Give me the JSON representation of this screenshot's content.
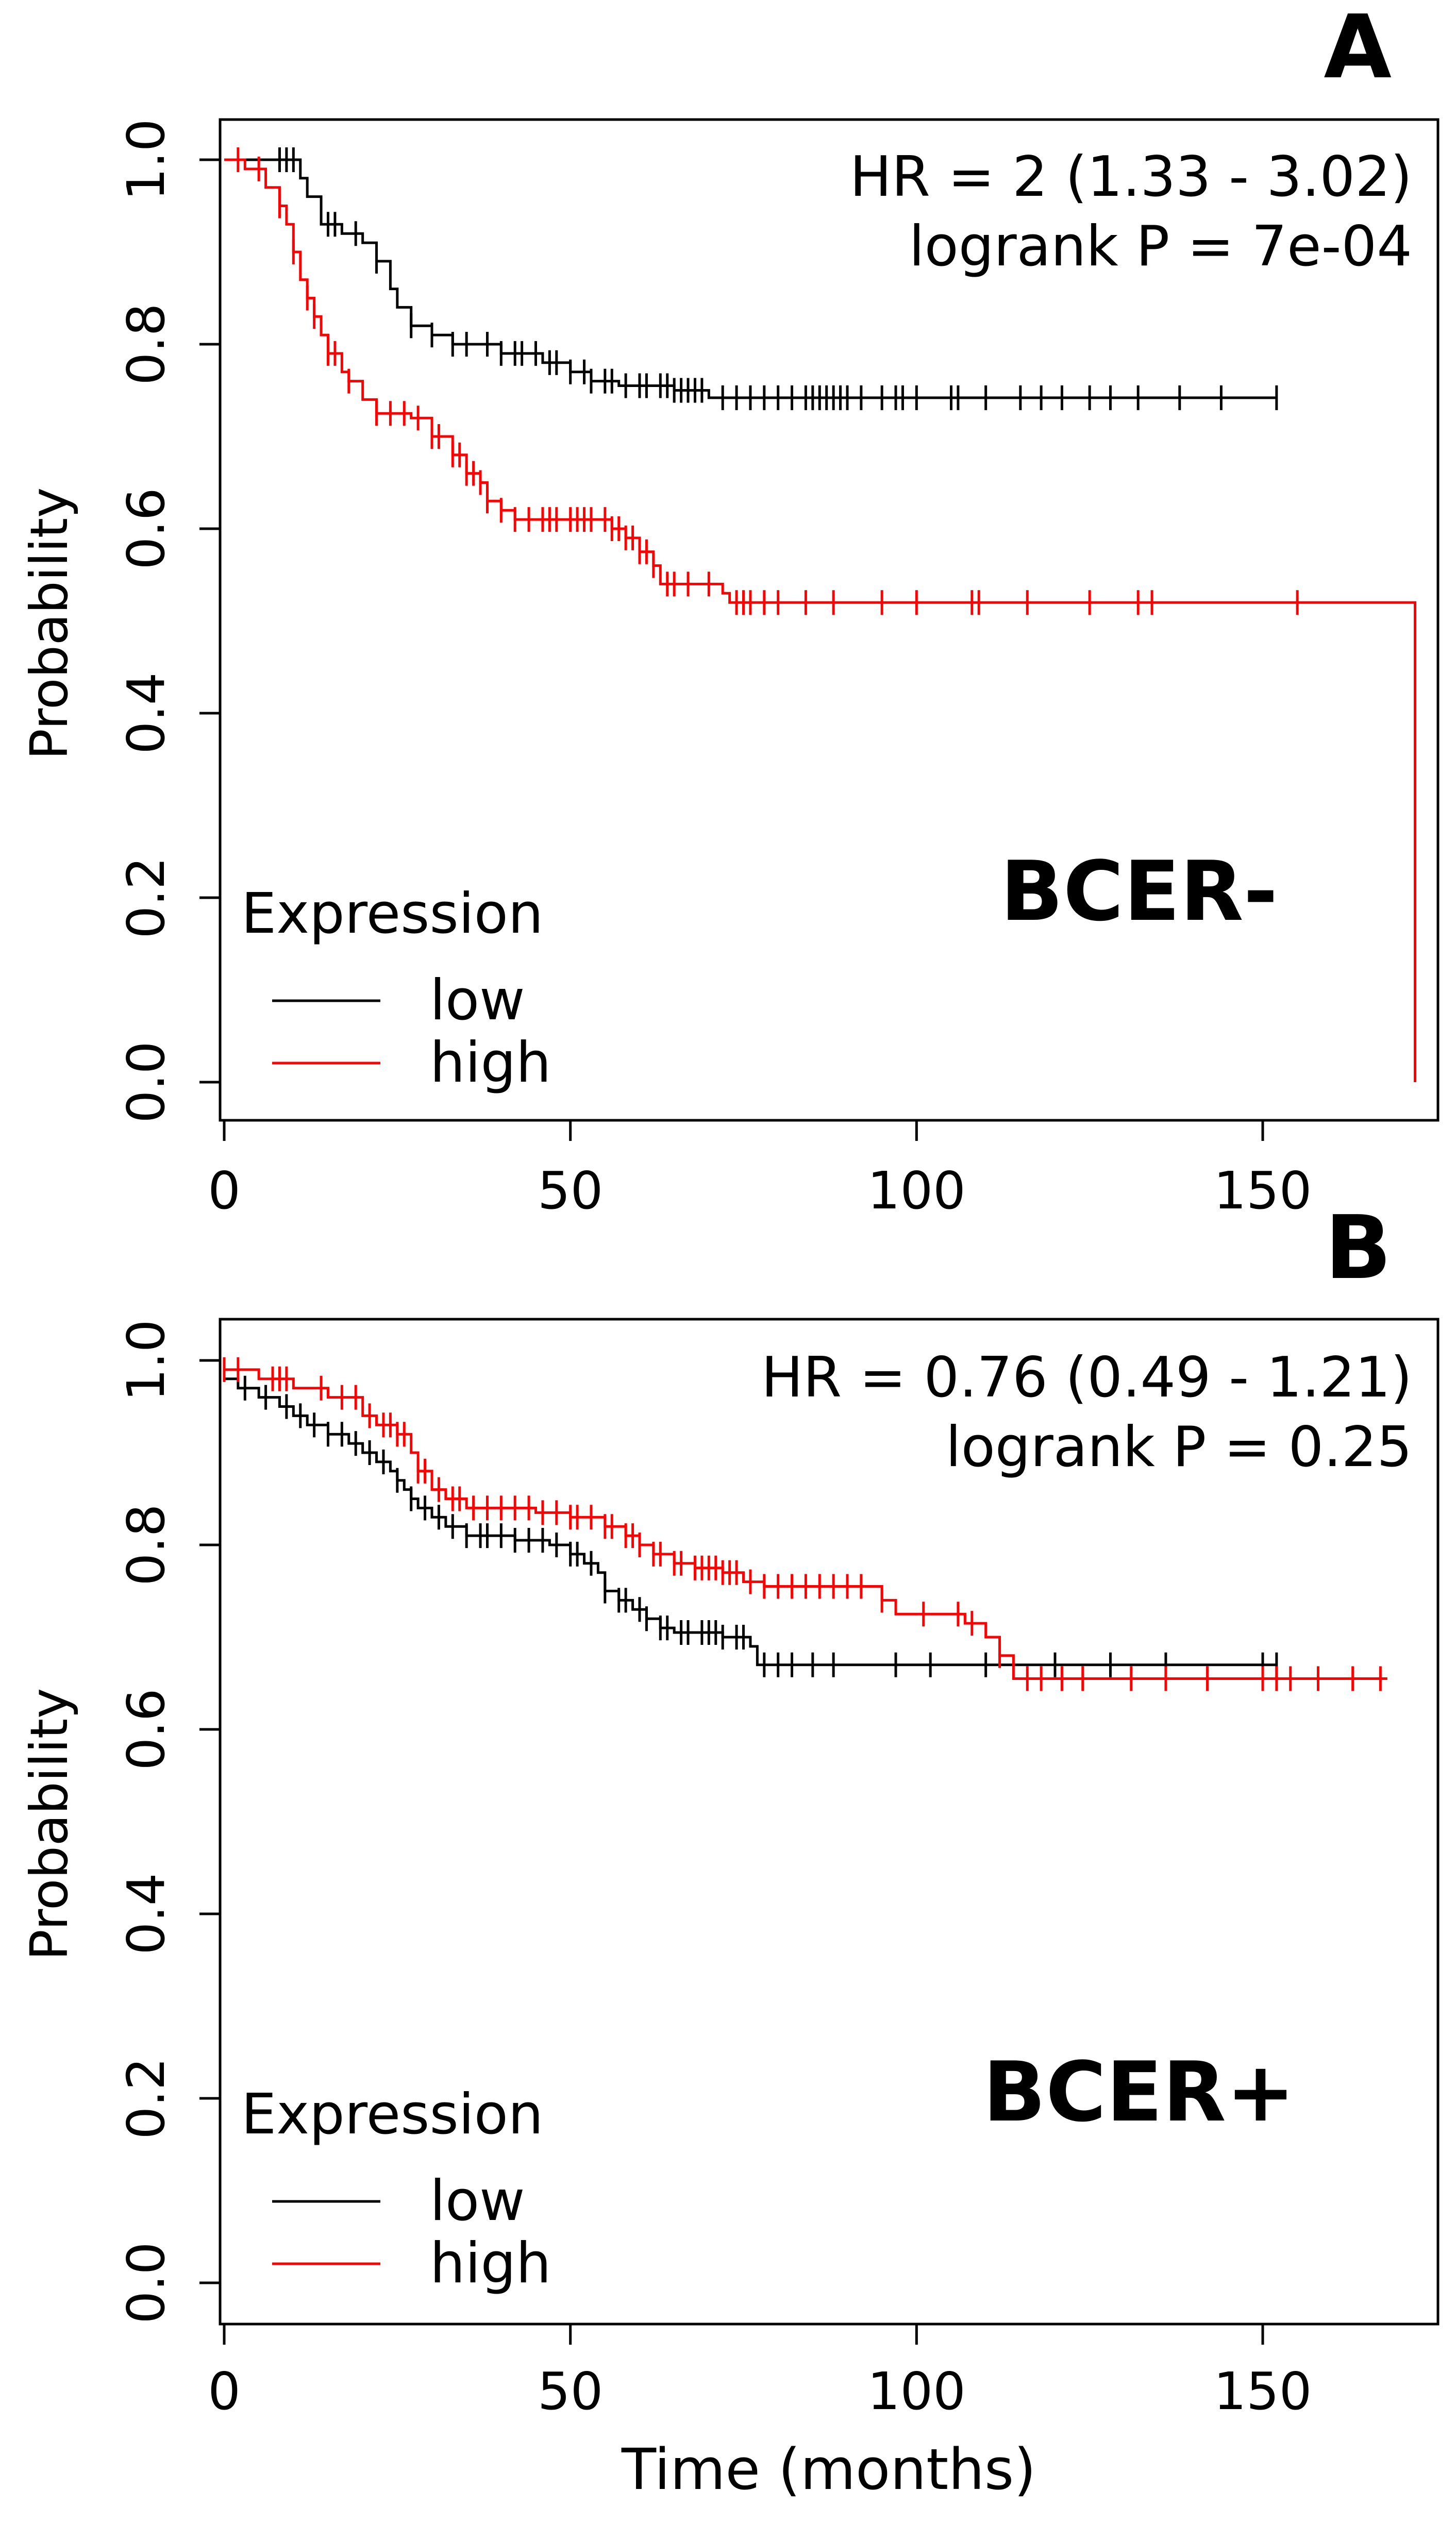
{
  "chart_data": [
    {
      "panel_label": "A",
      "type": "line",
      "subtype": "kaplan-meier",
      "title": "",
      "xlabel": "",
      "ylabel": "Probability",
      "xlim": [
        0,
        175
      ],
      "ylim": [
        0,
        1
      ],
      "x_ticks": [
        0,
        50,
        100,
        150
      ],
      "y_ticks": [
        0.0,
        0.2,
        0.4,
        0.6,
        0.8,
        1.0
      ],
      "x_tick_labels": [
        "0",
        "50",
        "100",
        "150"
      ],
      "y_tick_labels": [
        "0.0",
        "0.2",
        "0.4",
        "0.6",
        "0.8",
        "1.0"
      ],
      "grid": false,
      "annotations": [
        "HR = 2 (1.33 - 3.02)",
        "logrank P = 7e-04"
      ],
      "group_label": "BCER-",
      "legend": {
        "title": "Expression",
        "position": "bottom-left",
        "entries": [
          "low",
          "high"
        ]
      },
      "series": [
        {
          "name": "low",
          "color": "#000000",
          "steps": [
            [
              0,
              1.0
            ],
            [
              11,
              0.98
            ],
            [
              12,
              0.96
            ],
            [
              14,
              0.93
            ],
            [
              17,
              0.92
            ],
            [
              20,
              0.91
            ],
            [
              22,
              0.89
            ],
            [
              24,
              0.86
            ],
            [
              25,
              0.84
            ],
            [
              27,
              0.82
            ],
            [
              30,
              0.81
            ],
            [
              33,
              0.8
            ],
            [
              40,
              0.79
            ],
            [
              46,
              0.78
            ],
            [
              50,
              0.77
            ],
            [
              53,
              0.76
            ],
            [
              57,
              0.755
            ],
            [
              65,
              0.75
            ],
            [
              70,
              0.742
            ],
            [
              152,
              0.742
            ]
          ],
          "censors": [
            8,
            9,
            10,
            15,
            16,
            19,
            22,
            27,
            30,
            33,
            35,
            38,
            40,
            42,
            43,
            45,
            47,
            48,
            50,
            52,
            53,
            55,
            56,
            58,
            60,
            61,
            63,
            64,
            65,
            66,
            67,
            68,
            69,
            72,
            74,
            76,
            78,
            80,
            82,
            84,
            85,
            86,
            87,
            88,
            89,
            90,
            92,
            95,
            97,
            98,
            100,
            105,
            106,
            110,
            115,
            118,
            121,
            125,
            128,
            132,
            138,
            144,
            152
          ]
        },
        {
          "name": "high",
          "color": "#ff0000",
          "steps": [
            [
              0,
              1.0
            ],
            [
              3,
              0.99
            ],
            [
              6,
              0.97
            ],
            [
              8,
              0.95
            ],
            [
              9,
              0.93
            ],
            [
              10,
              0.9
            ],
            [
              11,
              0.87
            ],
            [
              12,
              0.85
            ],
            [
              13,
              0.83
            ],
            [
              14,
              0.81
            ],
            [
              15,
              0.79
            ],
            [
              17,
              0.77
            ],
            [
              18,
              0.76
            ],
            [
              20,
              0.74
            ],
            [
              22,
              0.725
            ],
            [
              27,
              0.72
            ],
            [
              30,
              0.7
            ],
            [
              33,
              0.68
            ],
            [
              35,
              0.66
            ],
            [
              37,
              0.65
            ],
            [
              38,
              0.63
            ],
            [
              40,
              0.62
            ],
            [
              42,
              0.61
            ],
            [
              56,
              0.6
            ],
            [
              58,
              0.59
            ],
            [
              60,
              0.575
            ],
            [
              62,
              0.56
            ],
            [
              63,
              0.54
            ],
            [
              72,
              0.53
            ],
            [
              73,
              0.52
            ],
            [
              172,
              0.52
            ],
            [
              172,
              0.0
            ]
          ],
          "censors": [
            2,
            5,
            8,
            10,
            12,
            13,
            15,
            16,
            18,
            22,
            24,
            26,
            28,
            30,
            31,
            33,
            34,
            35,
            36,
            37,
            38,
            40,
            42,
            44,
            46,
            47,
            48,
            50,
            51,
            52,
            53,
            55,
            56,
            57,
            58,
            59,
            60,
            61,
            62,
            64,
            65,
            67,
            70,
            74,
            75,
            76,
            78,
            80,
            84,
            88,
            95,
            100,
            108,
            109,
            116,
            125,
            132,
            134,
            155
          ]
        }
      ]
    },
    {
      "panel_label": "B",
      "type": "line",
      "subtype": "kaplan-meier",
      "title": "",
      "xlabel": "Time (months)",
      "ylabel": "Probability",
      "xlim": [
        0,
        175
      ],
      "ylim": [
        0,
        1
      ],
      "x_ticks": [
        0,
        50,
        100,
        150
      ],
      "y_ticks": [
        0.0,
        0.2,
        0.4,
        0.6,
        0.8,
        1.0
      ],
      "x_tick_labels": [
        "0",
        "50",
        "100",
        "150"
      ],
      "y_tick_labels": [
        "0.0",
        "0.2",
        "0.4",
        "0.6",
        "0.8",
        "1.0"
      ],
      "grid": false,
      "annotations": [
        "HR = 0.76 (0.49 - 1.21)",
        "logrank P = 0.25"
      ],
      "group_label": "BCER+",
      "legend": {
        "title": "Expression",
        "position": "bottom-left",
        "entries": [
          "low",
          "high"
        ]
      },
      "series": [
        {
          "name": "low",
          "color": "#000000",
          "steps": [
            [
              0,
              0.98
            ],
            [
              2,
              0.97
            ],
            [
              5,
              0.96
            ],
            [
              8,
              0.95
            ],
            [
              10,
              0.94
            ],
            [
              12,
              0.93
            ],
            [
              15,
              0.92
            ],
            [
              18,
              0.91
            ],
            [
              20,
              0.9
            ],
            [
              22,
              0.89
            ],
            [
              24,
              0.88
            ],
            [
              25,
              0.87
            ],
            [
              26,
              0.86
            ],
            [
              27,
              0.85
            ],
            [
              28,
              0.84
            ],
            [
              30,
              0.83
            ],
            [
              32,
              0.82
            ],
            [
              35,
              0.81
            ],
            [
              42,
              0.805
            ],
            [
              47,
              0.8
            ],
            [
              50,
              0.79
            ],
            [
              52,
              0.78
            ],
            [
              54,
              0.77
            ],
            [
              55,
              0.75
            ],
            [
              57,
              0.74
            ],
            [
              59,
              0.73
            ],
            [
              61,
              0.72
            ],
            [
              63,
              0.71
            ],
            [
              65,
              0.705
            ],
            [
              72,
              0.7
            ],
            [
              76,
              0.69
            ],
            [
              77,
              0.67
            ],
            [
              152,
              0.67
            ]
          ],
          "censors": [
            3,
            6,
            9,
            11,
            13,
            15,
            17,
            19,
            21,
            23,
            25,
            27,
            29,
            31,
            33,
            35,
            37,
            38,
            40,
            42,
            44,
            46,
            48,
            50,
            51,
            53,
            55,
            57,
            58,
            60,
            61,
            63,
            64,
            66,
            67,
            69,
            70,
            71,
            72,
            74,
            75,
            78,
            80,
            82,
            85,
            88,
            97,
            102,
            110,
            120,
            128,
            136,
            150,
            152
          ]
        },
        {
          "name": "high",
          "color": "#ff0000",
          "steps": [
            [
              0,
              0.99
            ],
            [
              5,
              0.98
            ],
            [
              10,
              0.97
            ],
            [
              15,
              0.96
            ],
            [
              20,
              0.94
            ],
            [
              22,
              0.93
            ],
            [
              25,
              0.92
            ],
            [
              27,
              0.9
            ],
            [
              28,
              0.88
            ],
            [
              30,
              0.86
            ],
            [
              32,
              0.85
            ],
            [
              35,
              0.84
            ],
            [
              45,
              0.835
            ],
            [
              50,
              0.83
            ],
            [
              55,
              0.82
            ],
            [
              58,
              0.81
            ],
            [
              60,
              0.8
            ],
            [
              62,
              0.79
            ],
            [
              65,
              0.78
            ],
            [
              68,
              0.775
            ],
            [
              72,
              0.77
            ],
            [
              75,
              0.76
            ],
            [
              78,
              0.755
            ],
            [
              95,
              0.74
            ],
            [
              97,
              0.725
            ],
            [
              107,
              0.715
            ],
            [
              110,
              0.7
            ],
            [
              112,
              0.68
            ],
            [
              114,
              0.655
            ],
            [
              168,
              0.655
            ]
          ],
          "censors": [
            0,
            2,
            7,
            8,
            9,
            14,
            17,
            19,
            21,
            23,
            24,
            25,
            26,
            28,
            29,
            31,
            33,
            34,
            36,
            38,
            40,
            42,
            44,
            46,
            48,
            50,
            51,
            53,
            55,
            56,
            58,
            59,
            60,
            62,
            63,
            65,
            66,
            68,
            69,
            70,
            71,
            72,
            73,
            74,
            76,
            78,
            80,
            82,
            84,
            86,
            88,
            90,
            92,
            95,
            101,
            106,
            108,
            112,
            116,
            118,
            121,
            124,
            131,
            136,
            142,
            150,
            152,
            154,
            158,
            163,
            167
          ]
        }
      ]
    }
  ]
}
